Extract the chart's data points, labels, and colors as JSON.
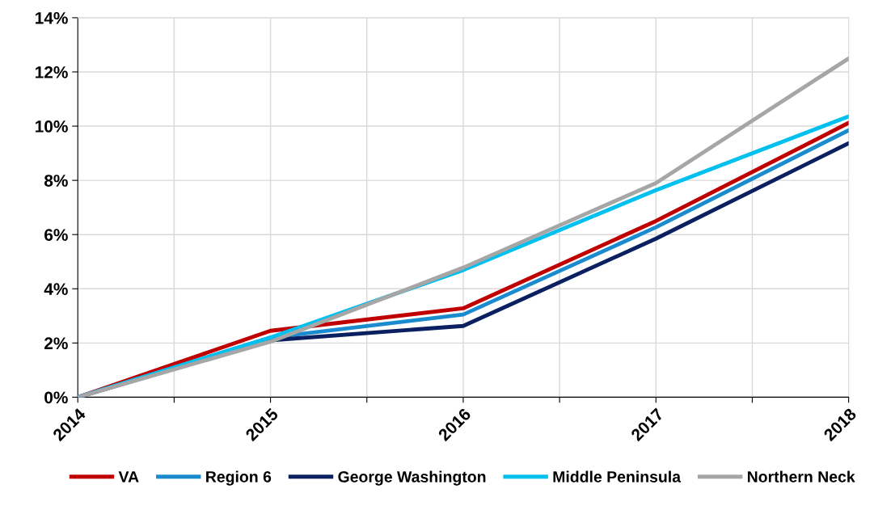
{
  "chart_data": {
    "type": "line",
    "x": [
      2014,
      2015,
      2016,
      2017,
      2018
    ],
    "series": [
      {
        "name": "VA",
        "color": "#c00000",
        "values": [
          0,
          2.45,
          3.28,
          6.5,
          10.12
        ]
      },
      {
        "name": "Region 6",
        "color": "#1b8bd0",
        "values": [
          0,
          2.2,
          3.05,
          6.27,
          9.85
        ]
      },
      {
        "name": "George Washington",
        "color": "#0a2060",
        "values": [
          0,
          2.1,
          2.63,
          5.85,
          9.37
        ]
      },
      {
        "name": "Middle Peninsula",
        "color": "#00c0f0",
        "values": [
          0,
          2.2,
          4.69,
          7.64,
          10.36
        ]
      },
      {
        "name": "Northern Neck",
        "color": "#a6a6a6",
        "values": [
          0,
          2.05,
          4.78,
          7.9,
          12.5
        ]
      }
    ],
    "xlim": [
      2014,
      2018
    ],
    "xticks": [
      2014,
      {
        "value": 2014.5,
        "label": null
      },
      2015,
      {
        "value": 2015.5,
        "label": null
      },
      2016,
      {
        "value": 2016.5,
        "label": null
      },
      2017,
      {
        "value": 2017.5,
        "label": null
      },
      2018
    ],
    "ylim": [
      0,
      14
    ],
    "yticks": [
      {
        "value": 0,
        "label": "0%"
      },
      {
        "value": 2,
        "label": "2%"
      },
      {
        "value": 4,
        "label": "4%"
      },
      {
        "value": 6,
        "label": "6%"
      },
      {
        "value": 8,
        "label": "8%"
      },
      {
        "value": 10,
        "label": "10%"
      },
      {
        "value": 12,
        "label": "12%"
      },
      {
        "value": 14,
        "label": "14%"
      }
    ],
    "grid": true,
    "legend": "bottom",
    "marker": "none",
    "line_style": "solid"
  }
}
